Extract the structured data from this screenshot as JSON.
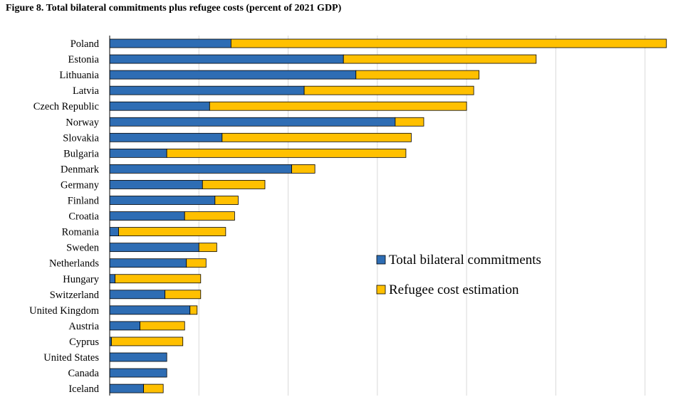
{
  "figure": {
    "title": "Figure 8. Total bilateral commitments plus refugee costs (percent of 2021 GDP)"
  },
  "chart_data": {
    "type": "bar",
    "orientation": "horizontal",
    "stacked": true,
    "title": "Figure 8. Total bilateral commitments plus refugee costs (percent of 2021 GDP)",
    "xlabel": "",
    "ylabel": "",
    "xlim": [
      0,
      3.125
    ],
    "gridlines_x": [
      0.5,
      1.0,
      1.5,
      2.0,
      2.5,
      3.0
    ],
    "tick_labels_shown": false,
    "legend_position": "center-right",
    "categories": [
      "Poland",
      "Estonia",
      "Lithuania",
      "Latvia",
      "Czech Republic",
      "Norway",
      "Slovakia",
      "Bulgaria",
      "Denmark",
      "Germany",
      "Finland",
      "Croatia",
      "Romania",
      "Sweden",
      "Netherlands",
      "Hungary",
      "Switzerland",
      "United Kingdom",
      "Austria",
      "Cyprus",
      "United States",
      "Canada",
      "Iceland"
    ],
    "series": [
      {
        "name": "Total bilateral commitments",
        "color": "#2E6DB4",
        "values": [
          0.68,
          1.31,
          1.38,
          1.09,
          0.56,
          1.6,
          0.63,
          0.32,
          1.02,
          0.52,
          0.59,
          0.42,
          0.05,
          0.5,
          0.43,
          0.03,
          0.31,
          0.45,
          0.17,
          0.01,
          0.32,
          0.32,
          0.19
        ]
      },
      {
        "name": "Refugee cost estimation",
        "color": "#FFC000",
        "values": [
          2.44,
          1.08,
          0.69,
          0.95,
          1.44,
          0.16,
          1.06,
          1.34,
          0.13,
          0.35,
          0.13,
          0.28,
          0.6,
          0.1,
          0.11,
          0.48,
          0.2,
          0.04,
          0.25,
          0.4,
          0.0,
          0.0,
          0.11
        ]
      }
    ]
  }
}
